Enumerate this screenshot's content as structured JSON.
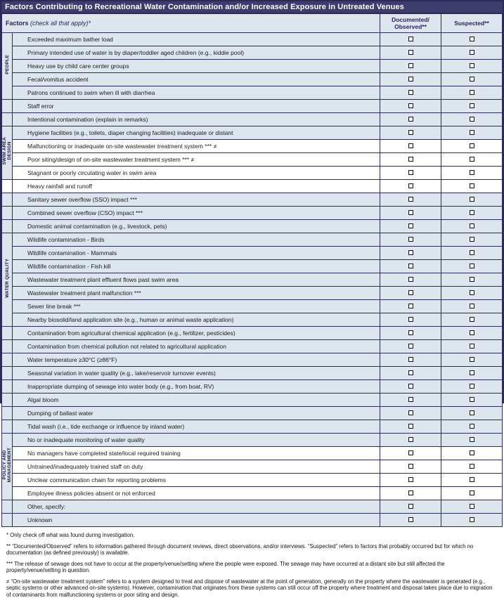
{
  "title": "Factors Contributing to Recreational Water Contamination and/or Increased Exposure in Untreated Venues",
  "header": {
    "factors_label": "Factors",
    "factors_note": " (check all that apply)*",
    "documented": "Documented/\nObserved**",
    "suspected": "Suspected**"
  },
  "checkbox_state": "all unchecked",
  "rows": [
    {
      "factor": "Exceeded maximum bather load",
      "category": {
        "label": "PEOPLE",
        "span": 5
      },
      "shade": "blue",
      "documented_checked": false,
      "suspected_checked": false
    },
    {
      "factor": "Primary intended use of water is by diaper/toddler aged children (e.g., kiddie pool)",
      "shade": "blue",
      "documented_checked": false,
      "suspected_checked": false
    },
    {
      "factor": "Heavy use by child care center groups",
      "shade": "blue",
      "documented_checked": false,
      "suspected_checked": false
    },
    {
      "factor": "Fecal/vomitus accident",
      "shade": "blue",
      "documented_checked": false,
      "suspected_checked": false
    },
    {
      "factor": "Patrons continued to swim when ill with diarrhea",
      "shade": "blue",
      "documented_checked": false,
      "suspected_checked": false
    },
    {
      "factor": "Staff error",
      "shade": "blue",
      "documented_checked": false,
      "suspected_checked": false
    },
    {
      "factor": "Intentional contamination (explain in remarks)",
      "shade": "blue",
      "documented_checked": false,
      "suspected_checked": false
    },
    {
      "factor": "Hygiene facilities (e.g., toilets, diaper changing facilities) inadequate or distant",
      "category": {
        "label": "SWIM AREA\nDESIGN",
        "span": 4
      },
      "shade": "blue",
      "documented_checked": false,
      "suspected_checked": false
    },
    {
      "factor": "Malfunctioning or inadequate on-site wastewater treatment system *** ≠",
      "shade": "white",
      "documented_checked": false,
      "suspected_checked": false
    },
    {
      "factor": "Poor siting/design of on-site wastewater treatment system *** ≠",
      "shade": "white",
      "documented_checked": false,
      "suspected_checked": false
    },
    {
      "factor": "Stagnant or poorly circulating water in swim area",
      "shade": "white",
      "documented_checked": false,
      "suspected_checked": false
    },
    {
      "factor": "Heavy rainfall and runoff",
      "shade": "white",
      "documented_checked": false,
      "suspected_checked": false
    },
    {
      "factor": "Sanitary sewer overflow (SSO) impact ***",
      "shade": "blue",
      "documented_checked": false,
      "suspected_checked": false
    },
    {
      "factor": "Combined sewer overflow (CSO) impact ***",
      "shade": "blue",
      "documented_checked": false,
      "suspected_checked": false
    },
    {
      "factor": "Domestic animal contamination (e.g., livestock, pets)",
      "shade": "blue",
      "documented_checked": false,
      "suspected_checked": false
    },
    {
      "factor": "Wildlife contamination - Birds",
      "category": {
        "label": "WATER QUALITY",
        "span": 7
      },
      "shade": "blue",
      "documented_checked": false,
      "suspected_checked": false
    },
    {
      "factor": "Wildlife contamination - Mammals",
      "shade": "blue",
      "documented_checked": false,
      "suspected_checked": false
    },
    {
      "factor": "Wildlife contamination - Fish kill",
      "shade": "blue",
      "documented_checked": false,
      "suspected_checked": false
    },
    {
      "factor": "Wastewater treatment plant effluent flows past swim area",
      "shade": "blue",
      "documented_checked": false,
      "suspected_checked": false
    },
    {
      "factor": "Wastewater treatment plant malfunction ***",
      "shade": "blue",
      "documented_checked": false,
      "suspected_checked": false
    },
    {
      "factor": "Sewer line break ***",
      "shade": "blue",
      "documented_checked": false,
      "suspected_checked": false
    },
    {
      "factor": "Nearby biosolid/land application site (e.g., human or animal waste application)",
      "shade": "blue",
      "documented_checked": false,
      "suspected_checked": false
    },
    {
      "factor": "Contamination from agricultural chemical application (e.g., fertilizer, pesticides)",
      "shade": "blue",
      "documented_checked": false,
      "suspected_checked": false
    },
    {
      "factor": "Contamination from chemical pollution not related to agricultural application",
      "shade": "blue",
      "documented_checked": false,
      "suspected_checked": false
    },
    {
      "factor": "Water temperature ≥30°C (≥86°F)",
      "shade": "blue",
      "documented_checked": false,
      "suspected_checked": false
    },
    {
      "factor": "Seasonal variation in water quality (e.g., lake/reservoir turnover events)",
      "shade": "blue",
      "documented_checked": false,
      "suspected_checked": false
    },
    {
      "factor": "Inappropriate dumping of sewage into water body (e.g., from boat, RV)",
      "shade": "blue",
      "documented_checked": false,
      "suspected_checked": false
    },
    {
      "factor": "Algal bloom",
      "shade": "blue",
      "documented_checked": false,
      "suspected_checked": false
    },
    {
      "factor": "Dumping of ballast water",
      "shade": "blue",
      "documented_checked": false,
      "suspected_checked": false
    },
    {
      "factor": "Tidal wash (i.e., tide exchange or influence by inland water)",
      "shade": "blue",
      "documented_checked": false,
      "suspected_checked": false
    },
    {
      "factor": "No or inadequate monitoring of water quality",
      "category": {
        "label": "POLICY AND\nMANAGEMENT",
        "span": 5
      },
      "shade": "blue",
      "documented_checked": false,
      "suspected_checked": false
    },
    {
      "factor": "No managers have completed state/local required training",
      "shade": "white",
      "documented_checked": false,
      "suspected_checked": false
    },
    {
      "factor": "Untrained/inadequately trained staff on duty",
      "shade": "white",
      "documented_checked": false,
      "suspected_checked": false
    },
    {
      "factor": "Unclear communication chain for reporting problems",
      "shade": "white",
      "documented_checked": false,
      "suspected_checked": false
    },
    {
      "factor": "Employee illness policies absent or not enforced",
      "shade": "white",
      "documented_checked": false,
      "suspected_checked": false
    },
    {
      "factor": "Other, specify:",
      "shade": "blue",
      "documented_checked": false,
      "suspected_checked": false
    },
    {
      "factor": "Unknown",
      "shade": "blue",
      "documented_checked": false,
      "suspected_checked": false
    }
  ],
  "footnotes": [
    "* Only check off what was found during investigation.",
    "** “Documented/Observed” refers to information gathered through document reviews, direct observations, and/or interviews. “Suspected” refers to factors that probably occurred but for which no documentation (as defined previously) is available.",
    "*** The release of sewage does not have to occur at the property/venue/setting where the people were exposed. The sewage may have occurred at a distant site but still affected the property/venue/setting in question.",
    "≠ “On-site wastewater treatment system” refers to a system designed to treat and dispose of wastewater at the point of generation, generally on the property where the wastewater is generated (e.g., septic systems or other advanced on-site systems). However, contamination that originates from these systems can still occur off the property where treatment and disposal takes place due to migration of contaminants from malfunctioning systems or poor siting and design."
  ],
  "colors": {
    "title_bg": "#3e3c6d",
    "row_blue": "#dde6ef",
    "row_white": "#ffffff",
    "border": "#2b2a55",
    "header_text": "#26255b"
  }
}
